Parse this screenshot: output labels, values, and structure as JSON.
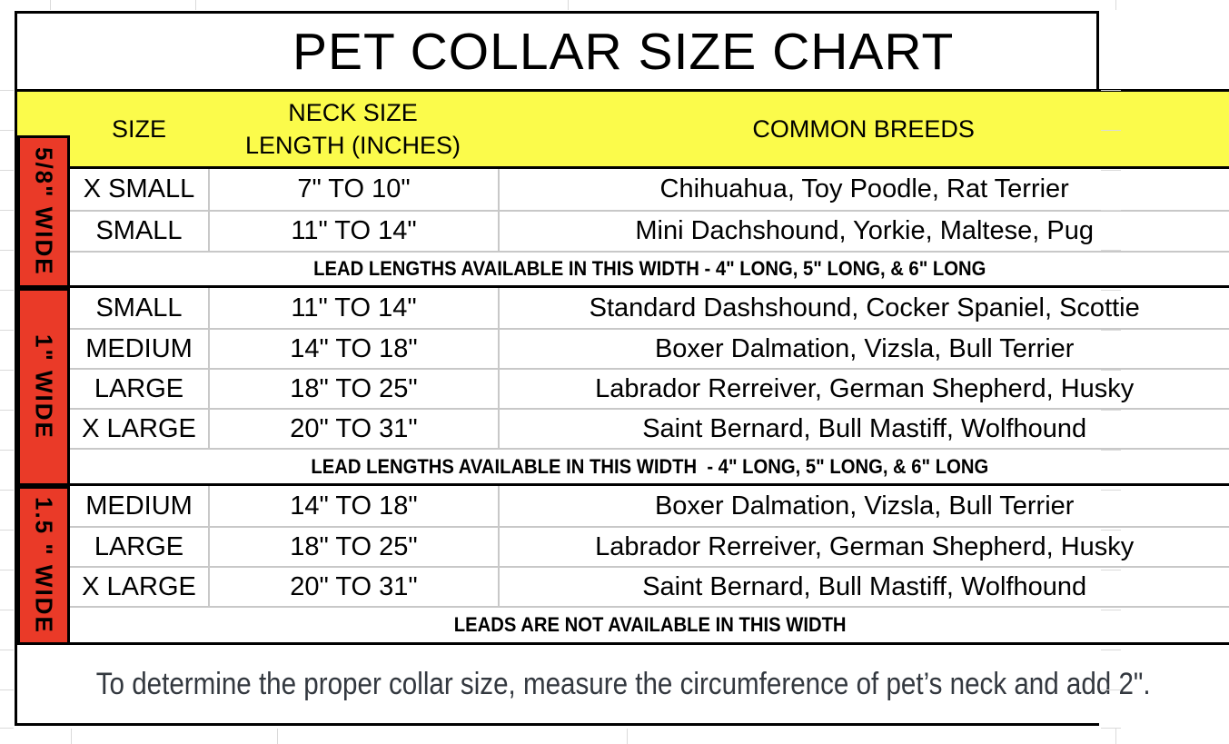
{
  "title": "PET COLLAR SIZE CHART",
  "header": {
    "size": "SIZE",
    "neck_line1": "NECK SIZE",
    "neck_line2": "LENGTH (INCHES)",
    "breeds": "COMMON BREEDS"
  },
  "sections": [
    {
      "width_label": "5/8\" WIDE",
      "rows": [
        {
          "size": "X SMALL",
          "neck": "7\" TO 10\"",
          "breeds": "Chihuahua, Toy Poodle, Rat Terrier"
        },
        {
          "size": "SMALL",
          "neck": "11\" TO 14\"",
          "breeds": "Mini Dachshound, Yorkie, Maltese, Pug"
        }
      ],
      "note": "LEAD LENGTHS AVAILABLE IN THIS WIDTH - 4\" LONG, 5\" LONG, & 6\" LONG"
    },
    {
      "width_label": "1\" WIDE",
      "rows": [
        {
          "size": "SMALL",
          "neck": "11\" TO 14\"",
          "breeds": "Standard Dashshound, Cocker Spaniel, Scottie"
        },
        {
          "size": "MEDIUM",
          "neck": "14\" TO 18\"",
          "breeds": "Boxer Dalmation, Vizsla, Bull Terrier"
        },
        {
          "size": "LARGE",
          "neck": "18\" TO 25\"",
          "breeds": "Labrador Rerreiver, German Shepherd, Husky"
        },
        {
          "size": "X LARGE",
          "neck": "20\" TO 31\"",
          "breeds": "Saint Bernard, Bull Mastiff, Wolfhound"
        }
      ],
      "note": "LEAD LENGTHS AVAILABLE IN THIS WIDTH  - 4\" LONG, 5\" LONG, & 6\" LONG"
    },
    {
      "width_label": "1.5 \" WIDE",
      "rows": [
        {
          "size": "MEDIUM",
          "neck": "14\" TO 18\"",
          "breeds": "Boxer Dalmation, Vizsla, Bull Terrier"
        },
        {
          "size": "LARGE",
          "neck": "18\" TO 25\"",
          "breeds": "Labrador Rerreiver, German Shepherd, Husky"
        },
        {
          "size": "X LARGE",
          "neck": "20\" TO 31\"",
          "breeds": "Saint Bernard, Bull Mastiff, Wolfhound"
        }
      ],
      "note": "LEADS ARE NOT AVAILABLE IN THIS WIDTH"
    }
  ],
  "footer": "To determine the proper collar size, measure the circumference of pet’s neck and add 2\".",
  "colors": {
    "header_bg": "#FBFB4B",
    "side_bg": "#EA3A28",
    "inner_grid": "#C8C8C8",
    "margin_grid": "#DADADA",
    "footer_text": "#33383F",
    "border": "#000000"
  }
}
